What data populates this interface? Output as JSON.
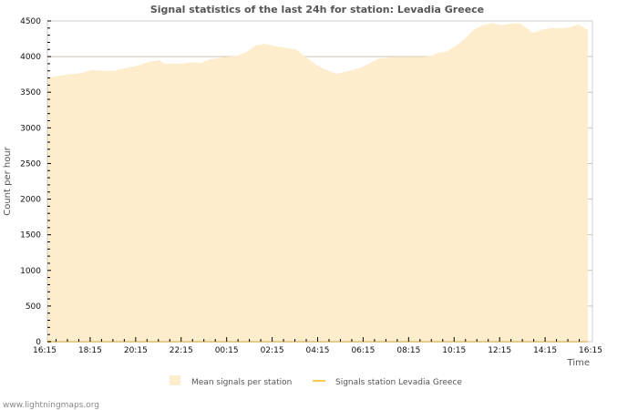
{
  "chart_data": {
    "type": "area",
    "title": "Signal statistics of the last 24h for station: Levadia Greece",
    "xlabel": "Time",
    "ylabel": "Count per hour",
    "ylim": [
      0,
      4500
    ],
    "yticks": [
      0,
      500,
      1000,
      1500,
      2000,
      2500,
      3000,
      3500,
      4000,
      4500
    ],
    "xlim_hours": [
      0,
      24
    ],
    "xtick_labels": [
      "16:15",
      "18:15",
      "20:15",
      "22:15",
      "00:15",
      "02:15",
      "04:15",
      "06:15",
      "08:15",
      "10:15",
      "12:15",
      "14:15",
      "16:15"
    ],
    "grid": true,
    "legend_position": "bottom",
    "series": [
      {
        "name": "Mean signals per station",
        "style": "area",
        "color": "#feedcc",
        "x_hours": [
          0.12,
          0.44,
          1.04,
          1.64,
          2.04,
          2.64,
          3.04,
          3.45,
          4.05,
          4.65,
          5.05,
          5.25,
          6.05,
          6.45,
          6.85,
          7.25,
          7.85,
          8.45,
          8.85,
          9.25,
          9.66,
          10.06,
          10.66,
          11.06,
          11.46,
          11.86,
          12.26,
          12.66,
          12.86,
          13.26,
          13.86,
          14.26,
          14.66,
          15.26,
          16.07,
          16.87,
          17.27,
          17.67,
          18.07,
          18.47,
          18.87,
          19.27,
          19.67,
          20.07,
          20.47,
          20.87,
          21.27,
          21.47,
          21.88,
          22.28,
          22.88,
          23.48,
          23.88
        ],
        "values": [
          3700,
          3720,
          3750,
          3770,
          3810,
          3800,
          3800,
          3830,
          3870,
          3930,
          3950,
          3900,
          3900,
          3920,
          3910,
          3960,
          3990,
          4010,
          4060,
          4150,
          4180,
          4150,
          4120,
          4100,
          4000,
          3900,
          3830,
          3780,
          3760,
          3790,
          3840,
          3900,
          3970,
          3990,
          3990,
          4000,
          4050,
          4070,
          4150,
          4250,
          4380,
          4440,
          4470,
          4440,
          4460,
          4470,
          4380,
          4330,
          4380,
          4400,
          4400,
          4450,
          4370
        ]
      },
      {
        "name": "Signals station Levadia Greece",
        "style": "line",
        "color": "#f8cd4c",
        "x_hours": [
          0.12,
          23.88
        ],
        "values": [
          0,
          0
        ]
      }
    ]
  },
  "credit": "www.lightningmaps.org"
}
